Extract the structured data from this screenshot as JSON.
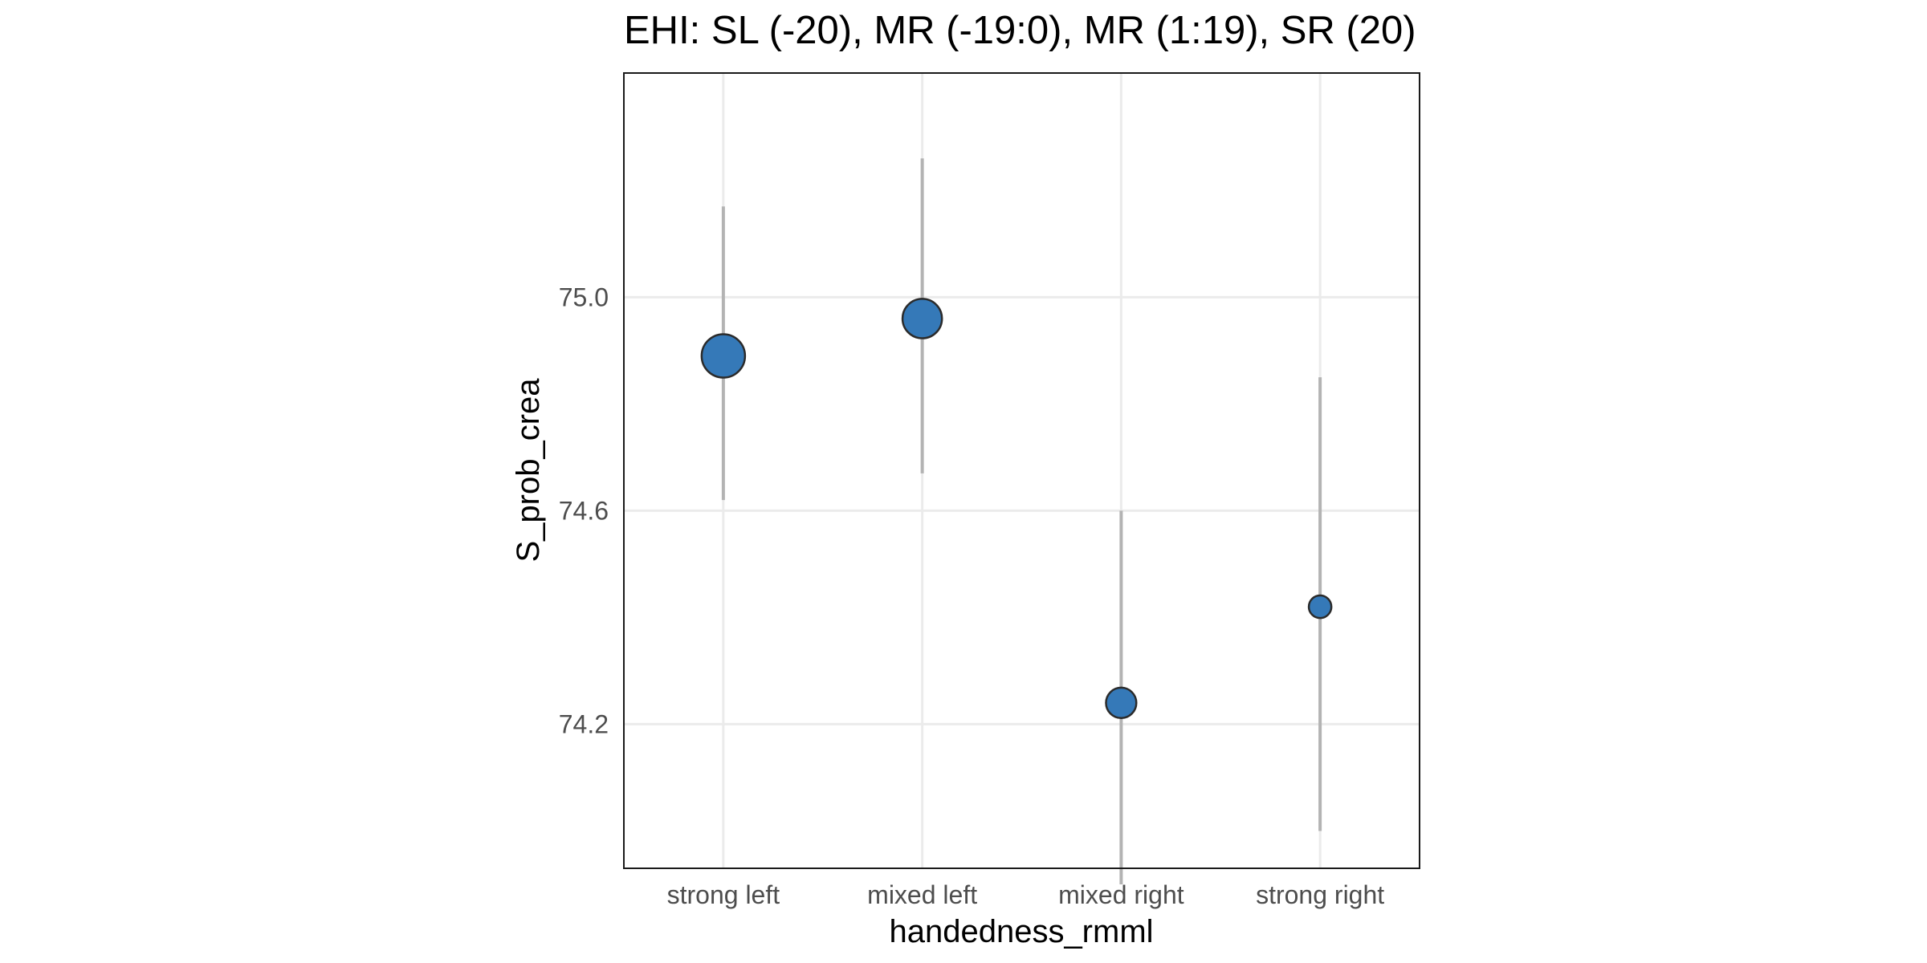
{
  "chart_data": {
    "type": "scatter",
    "subtype": "point-range",
    "title": "EHI: SL (-20), MR (-19:0), MR (1:19), SR (20)",
    "xlabel": "handedness_rmml",
    "ylabel": "S_prob_crea",
    "categories": [
      "strong left",
      "mixed left",
      "mixed right",
      "strong right"
    ],
    "y_ticks": [
      74.2,
      74.6,
      75.0
    ],
    "y_tick_labels": [
      "74.2",
      "74.6",
      "75.0"
    ],
    "ylim": [
      73.93,
      75.42
    ],
    "grid": true,
    "points": [
      {
        "category": "strong left",
        "y": 74.89,
        "lower": 74.62,
        "upper": 75.17,
        "relative_size": 1.0
      },
      {
        "category": "mixed left",
        "y": 74.96,
        "lower": 74.67,
        "upper": 75.26,
        "relative_size": 0.91
      },
      {
        "category": "mixed right",
        "y": 74.24,
        "lower": 73.9,
        "upper": 74.6,
        "relative_size": 0.7
      },
      {
        "category": "strong right",
        "y": 74.42,
        "lower": 74.0,
        "upper": 74.85,
        "relative_size": 0.52
      }
    ],
    "colors": {
      "point_fill": "#3579b8",
      "point_stroke": "#2b2b2b",
      "error_bar": "#b3b3b3",
      "grid": "#ebebeb",
      "panel_border": "#1a1a1a"
    }
  }
}
